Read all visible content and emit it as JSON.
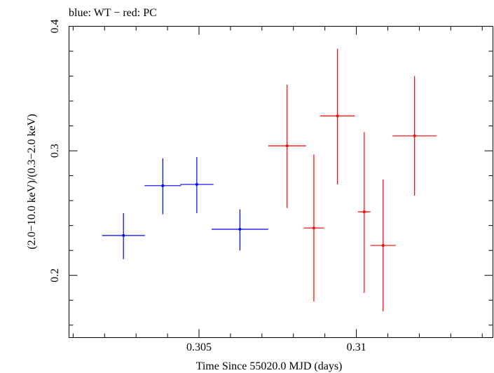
{
  "chart_data": {
    "type": "scatter",
    "title": "blue: WT − red: PC",
    "xlabel": "Time Since 55020.0 MJD (days)",
    "ylabel": "(2.0−10.0 keV)/(0.3−2.0 keV)",
    "xlim": [
      0.30087,
      0.31434
    ],
    "ylim": [
      0.15,
      0.4
    ],
    "x_ticks": [
      {
        "value": 0.305,
        "label": "0.305"
      },
      {
        "value": 0.31,
        "label": "0.31"
      }
    ],
    "y_ticks": [
      {
        "value": 0.2,
        "label": "0.2"
      },
      {
        "value": 0.3,
        "label": "0.3"
      },
      {
        "value": 0.4,
        "label": "0.4"
      }
    ],
    "grid": false,
    "series": [
      {
        "name": "WT",
        "color": "#0000ff",
        "points": [
          {
            "x": 0.3026,
            "xerr": 0.00068,
            "y": 0.232,
            "yerr_low": 0.019,
            "yerr_high": 0.018
          },
          {
            "x": 0.30385,
            "xerr": 0.00058,
            "y": 0.272,
            "yerr_low": 0.023,
            "yerr_high": 0.022
          },
          {
            "x": 0.30493,
            "xerr": 0.00053,
            "y": 0.273,
            "yerr_low": 0.023,
            "yerr_high": 0.022
          },
          {
            "x": 0.3063,
            "xerr": 0.0009,
            "y": 0.237,
            "yerr_low": 0.017,
            "yerr_high": 0.016
          }
        ]
      },
      {
        "name": "PC",
        "color": "#ff0000",
        "points": [
          {
            "x": 0.3078,
            "xerr": 0.0006,
            "y": 0.304,
            "yerr_low": 0.05,
            "yerr_high": 0.049
          },
          {
            "x": 0.30865,
            "xerr": 0.00032,
            "y": 0.238,
            "yerr_low": 0.059,
            "yerr_high": 0.059
          },
          {
            "x": 0.3094,
            "xerr": 0.00055,
            "y": 0.328,
            "yerr_low": 0.055,
            "yerr_high": 0.054
          },
          {
            "x": 0.31025,
            "xerr": 0.0002,
            "y": 0.251,
            "yerr_low": 0.065,
            "yerr_high": 0.064
          },
          {
            "x": 0.31085,
            "xerr": 0.0004,
            "y": 0.224,
            "yerr_low": 0.053,
            "yerr_high": 0.053
          },
          {
            "x": 0.31185,
            "xerr": 0.0007,
            "y": 0.312,
            "yerr_low": 0.048,
            "yerr_high": 0.048
          }
        ]
      }
    ]
  }
}
